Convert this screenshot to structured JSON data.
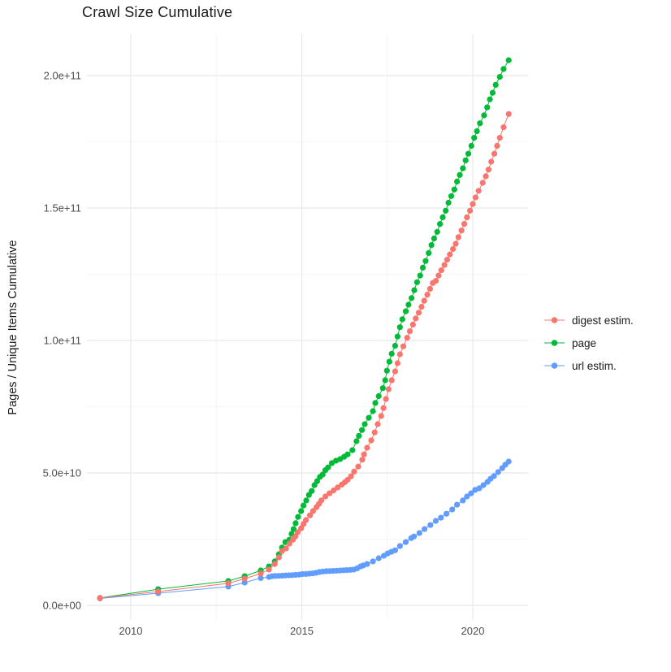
{
  "figure": {
    "title": "Crawl Size Cumulative"
  },
  "chart_data": {
    "type": "line",
    "title": "Crawl Size Cumulative",
    "xlabel": "",
    "ylabel": "Pages / Unique Items Cumulative",
    "units_note": "point values given as [year, pages_in_billions(1e9)]",
    "grid": true,
    "background": "#ffffff",
    "grid_major_color": "#e8e8e8",
    "grid_minor_color": "#f2f2f2",
    "x_axis": {
      "ticks": [
        {
          "label": "2010",
          "value": 2010
        },
        {
          "label": "2015",
          "value": 2015
        },
        {
          "label": "2020",
          "value": 2020
        }
      ],
      "minor_ticks": [
        2012.5,
        2017.5
      ],
      "range": [
        2008.72,
        2021.62
      ]
    },
    "y_axis": {
      "ticks": [
        {
          "label": "0.0e+00",
          "value": 0
        },
        {
          "label": "5.0e+10",
          "value": 50
        },
        {
          "label": "1.0e+11",
          "value": 100
        },
        {
          "label": "1.5e+11",
          "value": 150
        },
        {
          "label": "2.0e+11",
          "value": 200
        }
      ],
      "minor_ticks": [
        25,
        75,
        125,
        175
      ],
      "range": [
        -5.5,
        215.6
      ]
    },
    "legend": {
      "position": "right"
    },
    "draw_order": [
      1,
      2,
      0
    ],
    "series": [
      {
        "name": "digest estim.",
        "color": "#F8766D",
        "points": [
          [
            2009.1,
            2.8
          ],
          [
            2010.8,
            5.2
          ],
          [
            2012.85,
            8.3
          ],
          [
            2013.33,
            10.1
          ],
          [
            2013.8,
            12.0
          ],
          [
            2014.04,
            13.5
          ],
          [
            2014.21,
            15.6
          ],
          [
            2014.33,
            18.1
          ],
          [
            2014.42,
            20.5
          ],
          [
            2014.54,
            21.5
          ],
          [
            2014.64,
            23.3
          ],
          [
            2014.74,
            24.8
          ],
          [
            2014.81,
            26.0
          ],
          [
            2014.88,
            27.6
          ],
          [
            2014.98,
            29.1
          ],
          [
            2015.05,
            30.7
          ],
          [
            2015.12,
            32.2
          ],
          [
            2015.24,
            34.0
          ],
          [
            2015.33,
            35.6
          ],
          [
            2015.43,
            37.1
          ],
          [
            2015.5,
            38.3
          ],
          [
            2015.57,
            39.6
          ],
          [
            2015.69,
            41.1
          ],
          [
            2015.81,
            42.3
          ],
          [
            2015.93,
            43.4
          ],
          [
            2016.05,
            44.5
          ],
          [
            2016.17,
            45.6
          ],
          [
            2016.26,
            46.5
          ],
          [
            2016.34,
            47.4
          ],
          [
            2016.44,
            48.7
          ],
          [
            2016.53,
            50.5
          ],
          [
            2016.65,
            52.4
          ],
          [
            2016.77,
            55.0
          ],
          [
            2016.82,
            57.0
          ],
          [
            2016.91,
            59.5
          ],
          [
            2017.03,
            62.3
          ],
          [
            2017.13,
            65.3
          ],
          [
            2017.22,
            68.4
          ],
          [
            2017.32,
            71.5
          ],
          [
            2017.39,
            74.5
          ],
          [
            2017.46,
            77.9
          ],
          [
            2017.54,
            81.6
          ],
          [
            2017.63,
            85.0
          ],
          [
            2017.73,
            88.3
          ],
          [
            2017.8,
            91.4
          ],
          [
            2017.87,
            94.8
          ],
          [
            2017.97,
            97.8
          ],
          [
            2018.08,
            101.0
          ],
          [
            2018.16,
            103.5
          ],
          [
            2018.25,
            106.0
          ],
          [
            2018.33,
            108.3
          ],
          [
            2018.42,
            110.5
          ],
          [
            2018.5,
            112.7
          ],
          [
            2018.58,
            115.0
          ],
          [
            2018.67,
            117.3
          ],
          [
            2018.75,
            119.5
          ],
          [
            2018.83,
            121.7
          ],
          [
            2018.92,
            122.5
          ],
          [
            2019.0,
            124.5
          ],
          [
            2019.08,
            126.5
          ],
          [
            2019.17,
            128.5
          ],
          [
            2019.25,
            130.5
          ],
          [
            2019.33,
            132.5
          ],
          [
            2019.42,
            134.5
          ],
          [
            2019.5,
            136.5
          ],
          [
            2019.58,
            139.0
          ],
          [
            2019.67,
            141.5
          ],
          [
            2019.75,
            144.0
          ],
          [
            2019.83,
            146.5
          ],
          [
            2019.92,
            149.0
          ],
          [
            2020.0,
            151.5
          ],
          [
            2020.08,
            154.0
          ],
          [
            2020.17,
            156.5
          ],
          [
            2020.29,
            159.5
          ],
          [
            2020.38,
            162.0
          ],
          [
            2020.46,
            164.5
          ],
          [
            2020.54,
            167.5
          ],
          [
            2020.63,
            170.5
          ],
          [
            2020.71,
            173.5
          ],
          [
            2020.79,
            176.5
          ],
          [
            2020.9,
            180.5
          ],
          [
            2021.05,
            185.5
          ]
        ]
      },
      {
        "name": "page",
        "color": "#00BA38",
        "points": [
          [
            2009.1,
            2.8
          ],
          [
            2010.8,
            6.1
          ],
          [
            2012.85,
            9.2
          ],
          [
            2013.33,
            11.0
          ],
          [
            2013.8,
            13.2
          ],
          [
            2014.04,
            14.7
          ],
          [
            2014.21,
            16.6
          ],
          [
            2014.33,
            19.3
          ],
          [
            2014.42,
            21.8
          ],
          [
            2014.52,
            23.9
          ],
          [
            2014.64,
            24.8
          ],
          [
            2014.7,
            27.0
          ],
          [
            2014.76,
            28.8
          ],
          [
            2014.82,
            31.0
          ],
          [
            2014.89,
            33.4
          ],
          [
            2014.98,
            35.6
          ],
          [
            2015.05,
            37.7
          ],
          [
            2015.13,
            39.6
          ],
          [
            2015.21,
            41.7
          ],
          [
            2015.29,
            43.2
          ],
          [
            2015.37,
            45.4
          ],
          [
            2015.45,
            46.9
          ],
          [
            2015.53,
            48.5
          ],
          [
            2015.61,
            49.4
          ],
          [
            2015.69,
            51.0
          ],
          [
            2015.77,
            52.1
          ],
          [
            2015.88,
            53.7
          ],
          [
            2016.0,
            54.6
          ],
          [
            2016.12,
            55.2
          ],
          [
            2016.24,
            56.1
          ],
          [
            2016.34,
            57.0
          ],
          [
            2016.48,
            58.6
          ],
          [
            2016.6,
            62.0
          ],
          [
            2016.67,
            64.0
          ],
          [
            2016.76,
            66.2
          ],
          [
            2016.84,
            68.4
          ],
          [
            2016.96,
            70.8
          ],
          [
            2017.08,
            73.3
          ],
          [
            2017.15,
            76.4
          ],
          [
            2017.25,
            79.0
          ],
          [
            2017.37,
            82.0
          ],
          [
            2017.44,
            85.0
          ],
          [
            2017.49,
            88.6
          ],
          [
            2017.56,
            92.0
          ],
          [
            2017.63,
            95.0
          ],
          [
            2017.73,
            98.0
          ],
          [
            2017.8,
            101.5
          ],
          [
            2017.87,
            105.0
          ],
          [
            2017.94,
            108.0
          ],
          [
            2018.04,
            111.0
          ],
          [
            2018.12,
            113.5
          ],
          [
            2018.21,
            116.0
          ],
          [
            2018.29,
            119.0
          ],
          [
            2018.37,
            122.0
          ],
          [
            2018.46,
            124.5
          ],
          [
            2018.54,
            127.5
          ],
          [
            2018.62,
            130.0
          ],
          [
            2018.71,
            133.0
          ],
          [
            2018.79,
            136.0
          ],
          [
            2018.87,
            138.5
          ],
          [
            2018.96,
            141.0
          ],
          [
            2019.04,
            144.0
          ],
          [
            2019.12,
            146.5
          ],
          [
            2019.21,
            149.0
          ],
          [
            2019.29,
            152.0
          ],
          [
            2019.37,
            154.5
          ],
          [
            2019.46,
            157.0
          ],
          [
            2019.54,
            160.0
          ],
          [
            2019.62,
            162.5
          ],
          [
            2019.71,
            165.0
          ],
          [
            2019.79,
            168.0
          ],
          [
            2019.87,
            170.5
          ],
          [
            2019.96,
            173.5
          ],
          [
            2020.04,
            176.5
          ],
          [
            2020.12,
            179.0
          ],
          [
            2020.21,
            182.0
          ],
          [
            2020.33,
            185.0
          ],
          [
            2020.42,
            188.0
          ],
          [
            2020.5,
            191.0
          ],
          [
            2020.58,
            193.5
          ],
          [
            2020.67,
            196.5
          ],
          [
            2020.79,
            199.5
          ],
          [
            2020.9,
            202.5
          ],
          [
            2021.05,
            205.8
          ]
        ]
      },
      {
        "name": "url estim.",
        "color": "#619CFF",
        "points": [
          [
            2009.1,
            2.6
          ],
          [
            2010.8,
            4.6
          ],
          [
            2012.85,
            7.1
          ],
          [
            2013.33,
            8.6
          ],
          [
            2013.8,
            10.3
          ],
          [
            2014.04,
            10.7
          ],
          [
            2014.13,
            11.0
          ],
          [
            2014.22,
            11.1
          ],
          [
            2014.32,
            11.15
          ],
          [
            2014.42,
            11.2
          ],
          [
            2014.52,
            11.3
          ],
          [
            2014.62,
            11.35
          ],
          [
            2014.72,
            11.4
          ],
          [
            2014.82,
            11.5
          ],
          [
            2014.92,
            11.6
          ],
          [
            2015.02,
            11.8
          ],
          [
            2015.12,
            11.85
          ],
          [
            2015.22,
            11.95
          ],
          [
            2015.32,
            12.1
          ],
          [
            2015.42,
            12.3
          ],
          [
            2015.52,
            12.6
          ],
          [
            2015.62,
            12.8
          ],
          [
            2015.72,
            12.9
          ],
          [
            2015.82,
            12.95
          ],
          [
            2015.92,
            13.0
          ],
          [
            2016.02,
            13.1
          ],
          [
            2016.12,
            13.15
          ],
          [
            2016.22,
            13.25
          ],
          [
            2016.32,
            13.3
          ],
          [
            2016.42,
            13.4
          ],
          [
            2016.52,
            13.5
          ],
          [
            2016.62,
            14.0
          ],
          [
            2016.72,
            14.7
          ],
          [
            2016.8,
            15.1
          ],
          [
            2016.91,
            15.6
          ],
          [
            2017.08,
            16.6
          ],
          [
            2017.25,
            17.8
          ],
          [
            2017.4,
            18.7
          ],
          [
            2017.51,
            19.6
          ],
          [
            2017.62,
            20.2
          ],
          [
            2017.73,
            20.8
          ],
          [
            2017.87,
            22.4
          ],
          [
            2018.04,
            23.9
          ],
          [
            2018.2,
            25.4
          ],
          [
            2018.28,
            26.0
          ],
          [
            2018.44,
            27.3
          ],
          [
            2018.59,
            28.8
          ],
          [
            2018.76,
            30.3
          ],
          [
            2018.92,
            31.9
          ],
          [
            2019.07,
            33.1
          ],
          [
            2019.23,
            34.6
          ],
          [
            2019.4,
            36.2
          ],
          [
            2019.54,
            38.0
          ],
          [
            2019.71,
            39.6
          ],
          [
            2019.83,
            41.1
          ],
          [
            2019.95,
            42.3
          ],
          [
            2020.07,
            43.6
          ],
          [
            2020.19,
            44.2
          ],
          [
            2020.31,
            45.4
          ],
          [
            2020.43,
            46.6
          ],
          [
            2020.52,
            47.8
          ],
          [
            2020.62,
            48.8
          ],
          [
            2020.74,
            50.3
          ],
          [
            2020.86,
            51.8
          ],
          [
            2020.95,
            53.1
          ],
          [
            2021.05,
            54.3
          ]
        ]
      }
    ]
  }
}
